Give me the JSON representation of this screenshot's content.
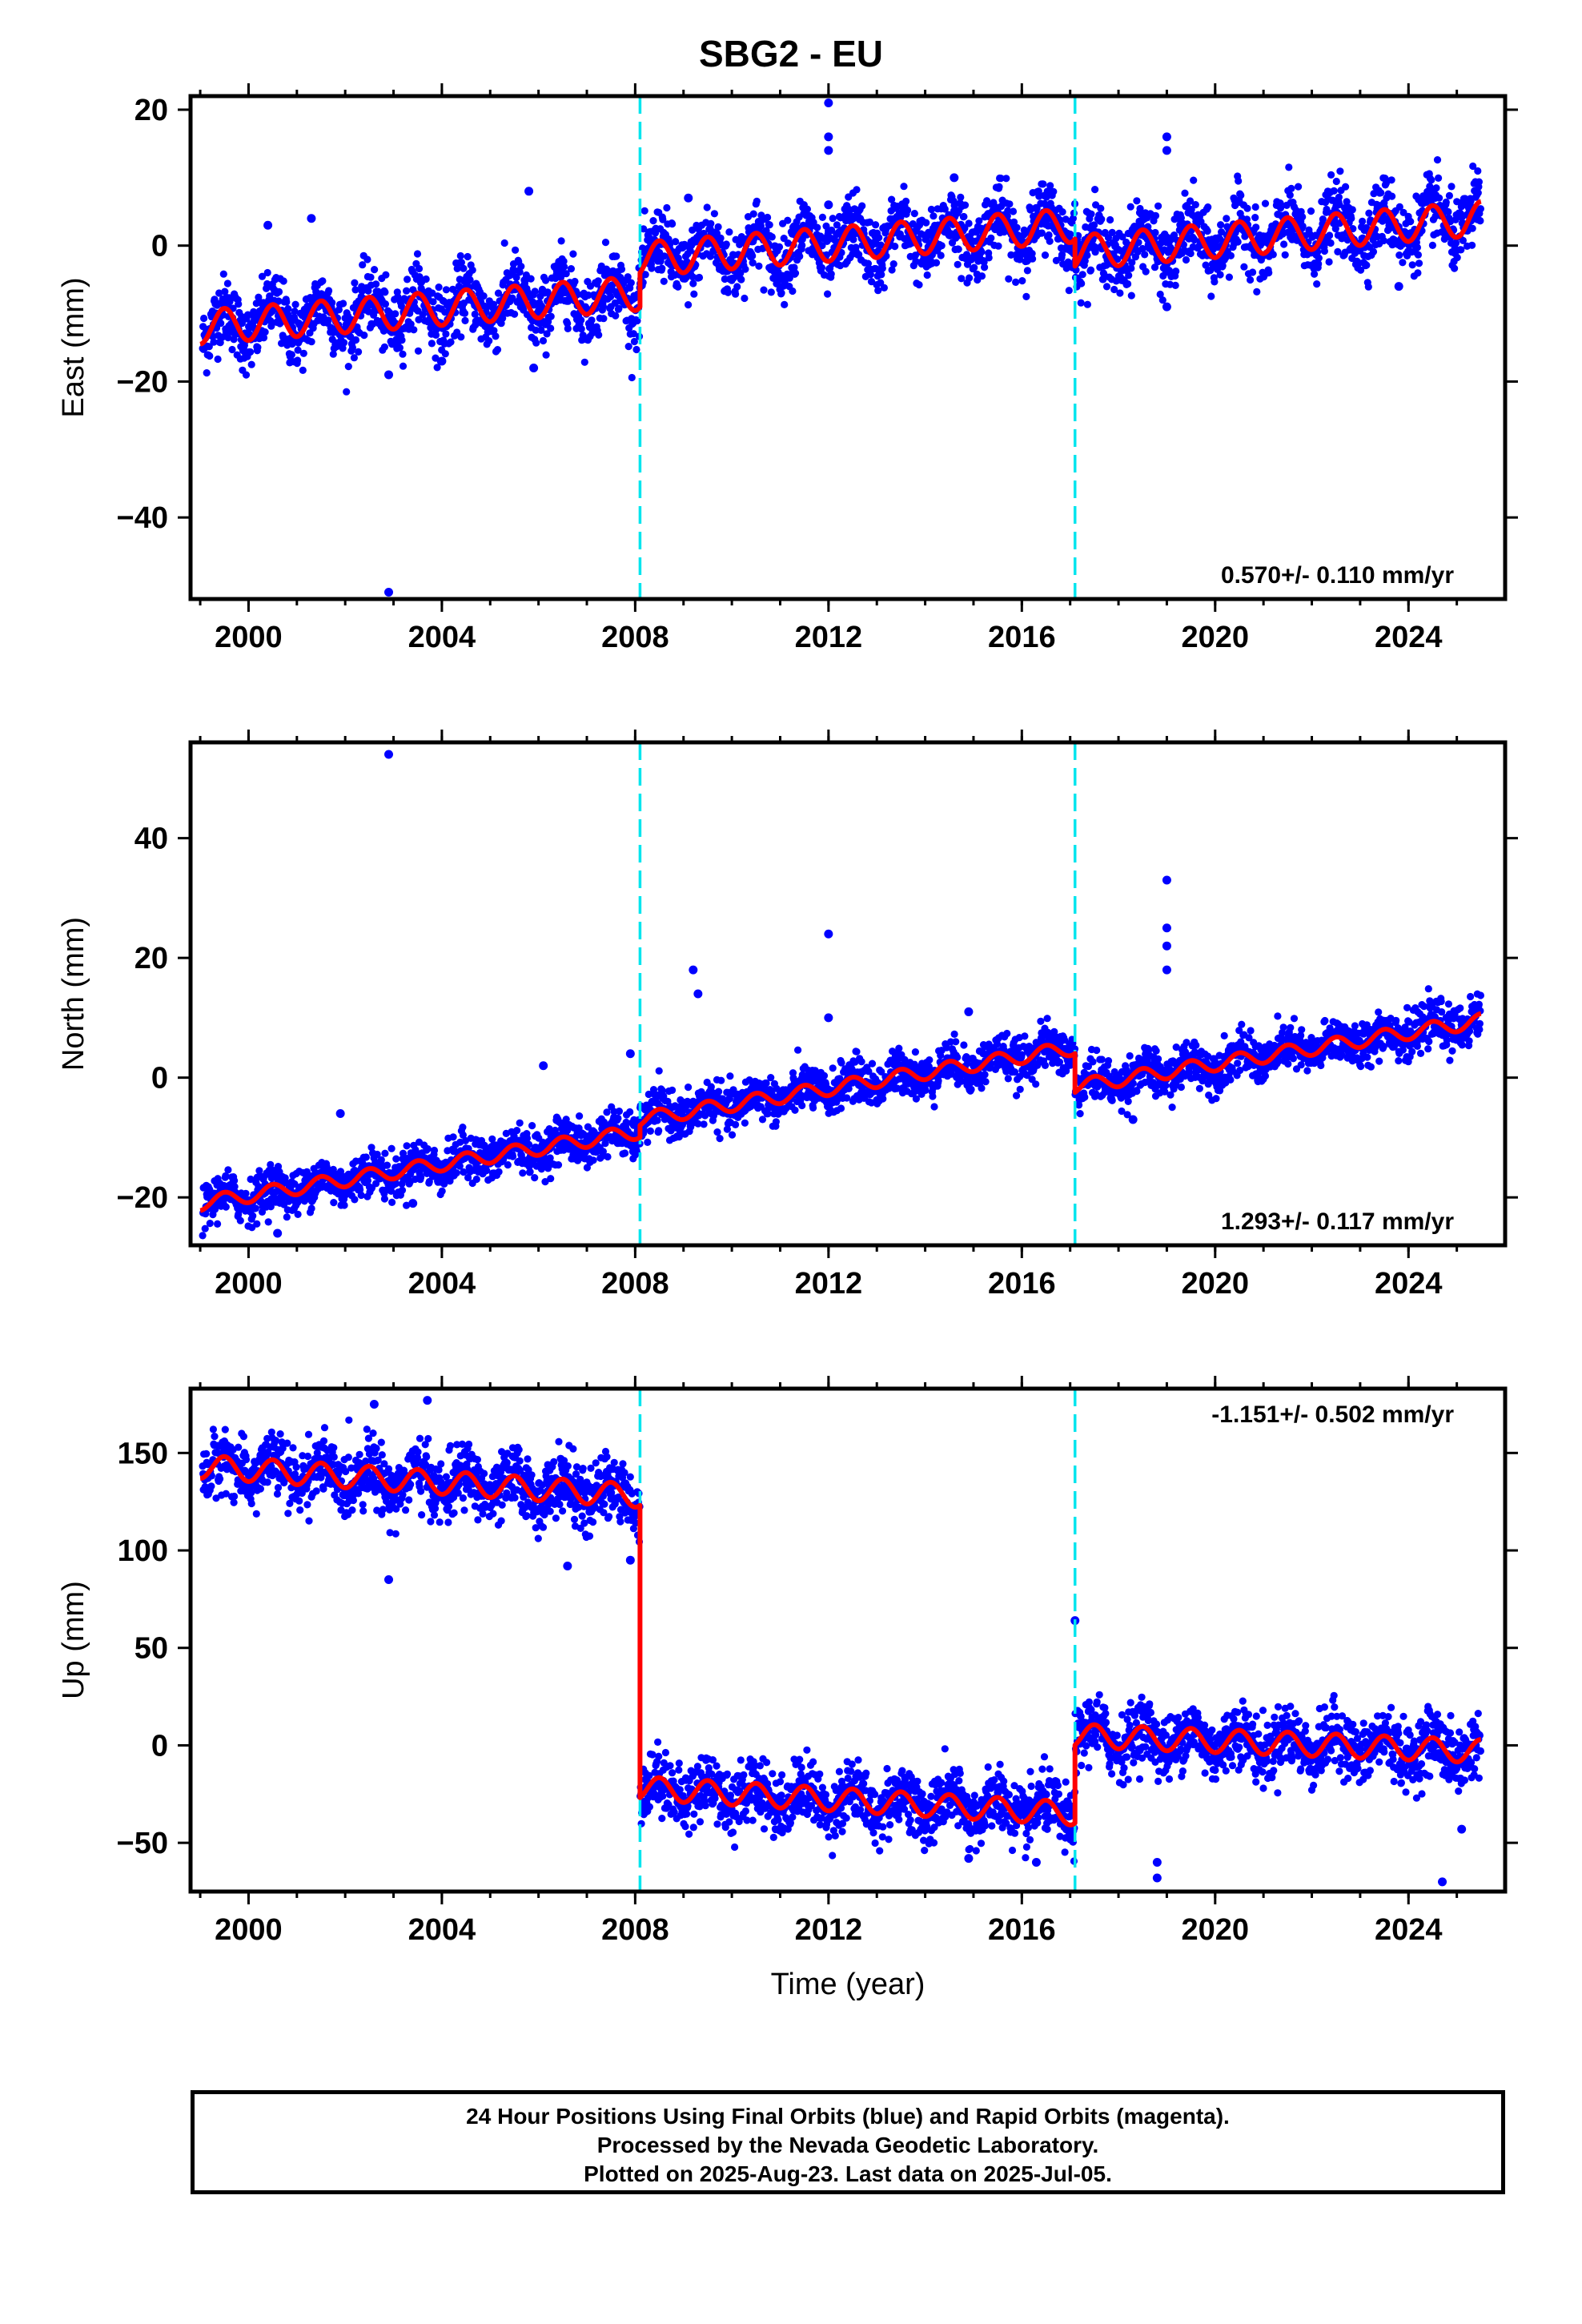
{
  "title": "SBG2 - EU",
  "footer": {
    "line1": "24 Hour Positions Using Final Orbits (blue) and Rapid Orbits (magenta).",
    "line2": "Processed by the Nevada Geodetic Laboratory.",
    "line3": "Plotted on 2025-Aug-23. Last data on 2025-Jul-05."
  },
  "colors": {
    "data": "#0000ff",
    "model": "#ff0000",
    "events": "#00e5ee"
  },
  "chart_data": [
    {
      "type": "scatter",
      "ylabel": "East (mm)",
      "xlabel": "",
      "xlim": [
        1998.8,
        2026.0
      ],
      "ylim": [
        -52,
        22
      ],
      "xticks": [
        2000,
        2004,
        2008,
        2012,
        2016,
        2020,
        2024
      ],
      "yticks": [
        20,
        0,
        -20,
        -40
      ],
      "rate_label": "0.570+/- 0.110 mm/yr",
      "rate_position": "bottom-right",
      "event_lines": [
        2008.1,
        2017.1
      ],
      "model_segments": [
        {
          "x0": 1999.0,
          "x1": 2008.1,
          "y0": -12.0,
          "y1": -7.0,
          "amp": 2.5
        },
        {
          "x0": 2008.1,
          "x1": 2017.1,
          "y0": -2.0,
          "y1": 3.0,
          "amp": 2.5
        },
        {
          "x0": 2017.1,
          "x1": 2025.5,
          "y0": -1.0,
          "y1": 4.0,
          "amp": 2.5
        }
      ],
      "scatter_noise": 2.5,
      "outliers": [
        {
          "x": 2002.9,
          "y": -51
        },
        {
          "x": 2012.0,
          "y": 21
        },
        {
          "x": 2012.0,
          "y": 16
        },
        {
          "x": 2012.0,
          "y": 14
        },
        {
          "x": 2019.0,
          "y": 16
        },
        {
          "x": 2019.0,
          "y": 14
        },
        {
          "x": 2005.8,
          "y": 8
        },
        {
          "x": 2009.1,
          "y": 7
        },
        {
          "x": 2014.6,
          "y": 10
        },
        {
          "x": 2001.3,
          "y": 4
        },
        {
          "x": 2000.4,
          "y": 3
        },
        {
          "x": 2005.9,
          "y": -18
        },
        {
          "x": 2002.9,
          "y": -19
        },
        {
          "x": 2004.0,
          "y": -17
        },
        {
          "x": 2012.0,
          "y": 6
        },
        {
          "x": 2023.8,
          "y": -6
        },
        {
          "x": 2019.0,
          "y": -9
        }
      ]
    },
    {
      "type": "scatter",
      "ylabel": "North (mm)",
      "xlabel": "",
      "xlim": [
        1998.8,
        2026.0
      ],
      "ylim": [
        -28,
        56
      ],
      "xticks": [
        2000,
        2004,
        2008,
        2012,
        2016,
        2020,
        2024
      ],
      "yticks": [
        40,
        20,
        0,
        -20
      ],
      "rate_label": "1.293+/- 0.117 mm/yr",
      "rate_position": "bottom-right",
      "event_lines": [
        2008.1,
        2017.1
      ],
      "model_segments": [
        {
          "x0": 1999.0,
          "x1": 2008.1,
          "y0": -21.0,
          "y1": -9.0,
          "amp": 1.2
        },
        {
          "x0": 2008.1,
          "x1": 2017.1,
          "y0": -7.0,
          "y1": 5.0,
          "amp": 1.2
        },
        {
          "x0": 2017.1,
          "x1": 2025.5,
          "y0": -1.5,
          "y1": 9.5,
          "amp": 1.2
        }
      ],
      "scatter_noise": 1.8,
      "outliers": [
        {
          "x": 2002.9,
          "y": 54
        },
        {
          "x": 2019.0,
          "y": 33
        },
        {
          "x": 2019.0,
          "y": 25
        },
        {
          "x": 2019.0,
          "y": 22
        },
        {
          "x": 2019.0,
          "y": 18
        },
        {
          "x": 2012.0,
          "y": 24
        },
        {
          "x": 2009.2,
          "y": 18
        },
        {
          "x": 2009.3,
          "y": 14
        },
        {
          "x": 2012.0,
          "y": 10
        },
        {
          "x": 2007.9,
          "y": 4
        },
        {
          "x": 2006.1,
          "y": 2
        },
        {
          "x": 2014.9,
          "y": 11
        },
        {
          "x": 2003.4,
          "y": -21
        },
        {
          "x": 2000.6,
          "y": -26
        },
        {
          "x": 2001.9,
          "y": -6
        },
        {
          "x": 2004.5,
          "y": -12
        },
        {
          "x": 2018.3,
          "y": -7
        }
      ]
    },
    {
      "type": "scatter",
      "ylabel": "Up (mm)",
      "xlabel": "Time (year)",
      "xlim": [
        1998.8,
        2026.0
      ],
      "ylim": [
        -75,
        183
      ],
      "xticks": [
        2000,
        2004,
        2008,
        2012,
        2016,
        2020,
        2024
      ],
      "yticks": [
        150,
        100,
        50,
        0,
        -50
      ],
      "rate_label": "-1.151+/- 0.502 mm/yr",
      "rate_position": "top-right",
      "event_lines": [
        2008.1,
        2017.1
      ],
      "model_segments": [
        {
          "x0": 1999.0,
          "x1": 2008.1,
          "y0": 143.0,
          "y1": 128.0,
          "amp": 6.0
        },
        {
          "x0": 2008.1,
          "x1": 2017.1,
          "y0": -22.0,
          "y1": -35.0,
          "amp": 6.0
        },
        {
          "x0": 2017.1,
          "x1": 2025.5,
          "y0": 5.0,
          "y1": -3.0,
          "amp": 6.0
        }
      ],
      "scatter_noise": 8.0,
      "outliers": [
        {
          "x": 2017.1,
          "y": 64
        },
        {
          "x": 2002.9,
          "y": 85
        },
        {
          "x": 2003.7,
          "y": 177
        },
        {
          "x": 2002.6,
          "y": 175
        },
        {
          "x": 2018.8,
          "y": -68
        },
        {
          "x": 2018.8,
          "y": -60
        },
        {
          "x": 2024.7,
          "y": -70
        },
        {
          "x": 2016.3,
          "y": -60
        },
        {
          "x": 2006.6,
          "y": 92
        },
        {
          "x": 2007.9,
          "y": 95
        },
        {
          "x": 2025.1,
          "y": -43
        },
        {
          "x": 2014.9,
          "y": -58
        }
      ]
    }
  ]
}
